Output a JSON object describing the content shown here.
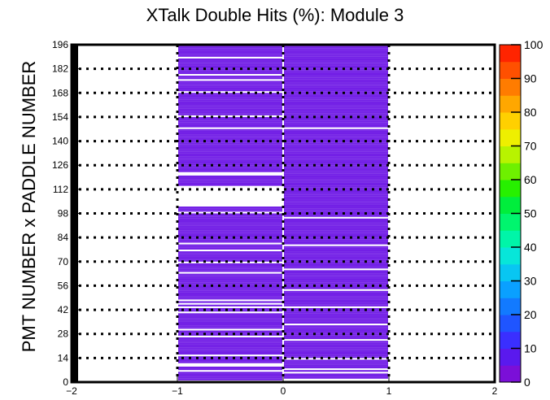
{
  "chart_data": {
    "type": "heatmap",
    "title": "XTalk Double Hits (%): Module 3",
    "ylabel": "PMT NUMBER x PADDLE NUMBER",
    "xlabel": "",
    "xlim": [
      -2,
      2
    ],
    "ylim": [
      0,
      196
    ],
    "zlim": [
      0,
      100
    ],
    "x_ticks": [
      -2,
      -1,
      0,
      1,
      2
    ],
    "y_ticks": [
      0,
      14,
      28,
      42,
      56,
      70,
      84,
      98,
      112,
      126,
      140,
      154,
      168,
      182,
      196
    ],
    "z_ticks": [
      0,
      10,
      20,
      30,
      40,
      50,
      60,
      70,
      80,
      90,
      100
    ],
    "grid": "dotted horizontal lines at y ticks, dotted vertical lines at x = -1, 0, 1",
    "palette": [
      "#7b0fd8",
      "#5a19ee",
      "#3a2fff",
      "#1f55ff",
      "#127aff",
      "#0aa0ff",
      "#08c6f2",
      "#07e6d9",
      "#00f5a8",
      "#00f56e",
      "#00ee3c",
      "#27f000",
      "#6ef000",
      "#b8f300",
      "#eeef00",
      "#ffd000",
      "#ffa700",
      "#ff7c00",
      "#ff5000",
      "#ff2400"
    ],
    "bar_color": "#7320e6",
    "pmt_columns": [
      {
        "x_range": [
          -1,
          0
        ],
        "y_bins_filled": [
          1,
          2,
          3,
          4,
          5,
          7,
          8,
          11,
          12,
          13,
          14,
          16,
          17,
          18,
          19,
          20,
          21,
          22,
          23,
          24,
          25,
          27,
          28,
          29,
          31,
          32,
          33,
          34,
          35,
          36,
          37,
          38,
          39,
          41,
          42,
          44,
          46,
          48,
          49,
          50,
          51,
          52,
          53,
          54,
          55,
          56,
          57,
          58,
          59,
          60,
          61,
          62,
          64,
          65,
          66,
          67,
          68,
          70,
          71,
          72,
          73,
          74,
          75,
          77,
          78,
          79,
          81,
          82,
          83,
          84,
          85,
          86,
          87,
          88,
          89,
          90,
          91,
          92,
          93,
          94,
          95,
          96,
          97,
          99,
          100,
          101,
          114,
          115,
          116,
          117,
          118,
          119,
          122,
          123,
          124,
          125,
          126,
          127,
          128,
          129,
          130,
          131,
          132,
          133,
          134,
          135,
          136,
          137,
          138,
          139,
          140,
          141,
          142,
          143,
          144,
          145,
          146,
          148,
          149,
          150,
          151,
          152,
          153,
          155,
          156,
          157,
          158,
          159,
          160,
          161,
          162,
          163,
          164,
          165,
          166,
          167,
          169,
          170,
          171,
          172,
          173,
          174,
          176,
          177,
          179,
          180,
          181,
          182,
          183,
          184,
          185,
          186,
          187,
          189,
          190,
          191,
          192,
          193,
          194,
          195
        ]
      },
      {
        "x_range": [
          0,
          1
        ],
        "y_bins_filled": [
          2,
          3,
          4,
          6,
          8,
          9,
          10,
          11,
          12,
          14,
          15,
          16,
          17,
          18,
          19,
          20,
          21,
          22,
          23,
          25,
          26,
          27,
          28,
          29,
          30,
          31,
          32,
          34,
          35,
          36,
          37,
          38,
          39,
          40,
          41,
          42,
          44,
          45,
          46,
          47,
          48,
          49,
          50,
          51,
          52,
          54,
          55,
          56,
          57,
          58,
          59,
          60,
          61,
          62,
          63,
          64,
          66,
          67,
          68,
          69,
          70,
          71,
          72,
          73,
          74,
          75,
          76,
          77,
          78,
          80,
          81,
          82,
          83,
          84,
          85,
          86,
          87,
          88,
          89,
          90,
          91,
          92,
          93,
          94,
          96,
          97,
          98,
          99,
          100,
          101,
          102,
          103,
          104,
          105,
          106,
          107,
          108,
          109,
          110,
          111,
          112,
          113,
          114,
          115,
          116,
          117,
          118,
          119,
          120,
          121,
          122,
          123,
          124,
          125,
          126,
          127,
          128,
          129,
          130,
          131,
          132,
          133,
          134,
          135,
          136,
          137,
          138,
          139,
          140,
          141,
          142,
          143,
          144,
          145,
          146,
          148,
          149,
          150,
          151,
          152,
          153,
          154,
          155,
          156,
          157,
          158,
          159,
          160,
          161,
          162,
          163,
          164,
          165,
          166,
          167,
          168,
          169,
          170,
          171,
          172,
          173,
          174,
          175,
          176,
          177,
          178,
          179,
          180,
          181,
          182,
          183,
          184,
          185,
          186,
          187,
          188,
          189,
          190,
          191,
          192,
          193,
          194,
          195
        ]
      }
    ]
  }
}
